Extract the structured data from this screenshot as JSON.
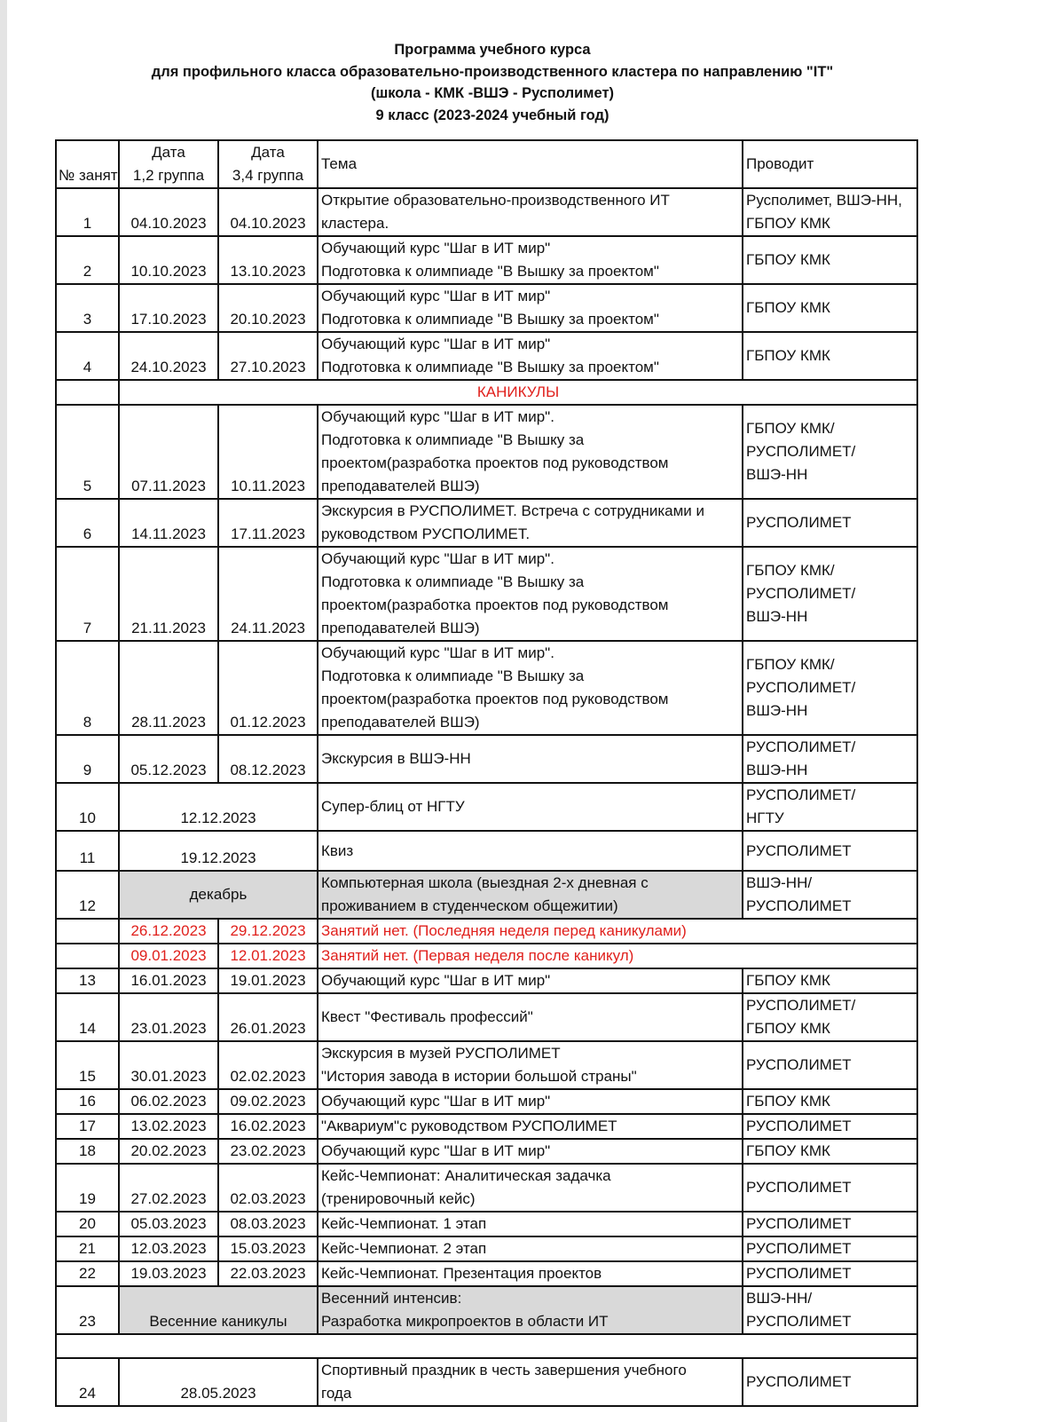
{
  "titles": {
    "line1": "Программа учебного курса",
    "line2": "для профильного класса образовательно-производственного кластера по направлению \"IT\"",
    "line3": "(школа - КМК -ВШЭ - Рusполимет)",
    "line4": "9 класс (2023-2024 учебный год)"
  },
  "header": {
    "num": "№ занят",
    "date1": "Дата\n1,2 группа",
    "date2": "Дата\n3,4 группа",
    "topic": "Тема",
    "lead": "Проводит"
  },
  "rows": [
    {
      "kind": "lesson",
      "h": 52,
      "num": "1",
      "d1": "04.10.2023",
      "d2": "04.10.2023",
      "topic": "Открытие образовательно-производственного ИТ\nкластера.",
      "lead": "Русполимет, ВШЭ-НН,\nГБПОУ КМК"
    },
    {
      "kind": "lesson",
      "h": 52,
      "num": "2",
      "d1": "10.10.2023",
      "d2": "13.10.2023",
      "topic": "Обучающий курс \"Шаг в ИТ мир\"\nПодготовка к олимпиаде \"В Вышку за проектом\"",
      "lead": "ГБПОУ КМК"
    },
    {
      "kind": "lesson",
      "h": 52,
      "num": "3",
      "d1": "17.10.2023",
      "d2": "20.10.2023",
      "topic": "Обучающий курс \"Шаг в ИТ мир\"\nПодготовка к олимпиаде \"В Вышку за проектом\"",
      "lead": "ГБПОУ КМК"
    },
    {
      "kind": "lesson",
      "h": 52,
      "num": "4",
      "d1": "24.10.2023",
      "d2": "27.10.2023",
      "topic": "Обучающий курс \"Шаг в ИТ мир\"\nПодготовка к олимпиаде \"В Вышку за проектом\"",
      "lead": "ГБПОУ КМК"
    },
    {
      "kind": "holiday",
      "h": 26,
      "topic": "КАНИКУЛЫ"
    },
    {
      "kind": "lesson",
      "h": 105,
      "num": "5",
      "d1": "07.11.2023",
      "d2": "10.11.2023",
      "topic": "Обучающий курс \"Шаг в ИТ мир\".\nПодготовка к олимпиаде \"В Вышку за\nпроектом(разработка проектов под руководством\nпреподавателей ВШЭ)",
      "lead": "ГБПОУ КМК/\nРУСПОЛИМЕТ/\nВШЭ-НН"
    },
    {
      "kind": "lesson",
      "h": 52,
      "num": "6",
      "d1": "14.11.2023",
      "d2": "17.11.2023",
      "topic": "Экскурсия в РУСПОЛИМЕТ. Встреча с сотрудниками и\nруководством РУСПОЛИМЕТ.",
      "lead": "РУСПОЛИМЕТ"
    },
    {
      "kind": "lesson",
      "h": 105,
      "num": "7",
      "d1": "21.11.2023",
      "d2": "24.11.2023",
      "topic": "Обучающий курс \"Шаг в ИТ мир\".\nПодготовка к олимпиаде \"В Вышку за\nпроектом(разработка проектов под руководством\nпреподавателей ВШЭ)",
      "lead": "ГБПОУ КМК/\nРУСПОЛИМЕТ/\nВШЭ-НН"
    },
    {
      "kind": "lesson",
      "h": 104,
      "num": "8",
      "d1": "28.11.2023",
      "d2": "01.12.2023",
      "topic": "Обучающий курс \"Шаг в ИТ мир\".\nПодготовка к олимпиаде \"В Вышку за\nпроектом(разработка проектов под руководством\nпреподавателей ВШЭ)",
      "lead": "ГБПОУ КМК/\nРУСПОЛИМЕТ/\nВШЭ-НН"
    },
    {
      "kind": "lesson",
      "h": 53,
      "num": "9",
      "d1": "05.12.2023",
      "d2": "08.12.2023",
      "topic": "Экскурсия в ВШЭ-НН",
      "lead": "РУСПОЛИМЕТ/\nВШЭ-НН"
    },
    {
      "kind": "merged",
      "h": 52,
      "num": "10",
      "date": "12.12.2023",
      "topic": "Супер-блиц от НГТУ",
      "lead": "РУСПОЛИМЕТ/\nНГТУ"
    },
    {
      "kind": "merged",
      "h": 45,
      "num": "11",
      "date": "19.12.2023",
      "topic": "Квиз",
      "lead": "РУСПОЛИМЕТ"
    },
    {
      "kind": "gray",
      "h": 52,
      "num": "12",
      "date": "декабрь",
      "topic": "Компьютерная школа  (выездная 2-х дневная с\nпроживанием в студенческом общежитии)",
      "lead": "ВШЭ-НН/\nРУСПОЛИМЕТ"
    },
    {
      "kind": "off",
      "h": 26,
      "d1": "26.12.2023",
      "d2": "29.12.2023",
      "topic": "Занятий нет. (Последняя неделя перед каникулами)"
    },
    {
      "kind": "off",
      "h": 26,
      "d1": "09.01.2023",
      "d2": "12.01.2023",
      "topic": "Занятий нет. (Первая неделя после каникул)"
    },
    {
      "kind": "lesson",
      "h": 26,
      "num": "13",
      "d1": "16.01.2023",
      "d2": "19.01.2023",
      "topic": "Обучающий курс \"Шаг в ИТ мир\"",
      "lead": "ГБПОУ КМК"
    },
    {
      "kind": "lesson",
      "h": 53,
      "num": "14",
      "d1": "23.01.2023",
      "d2": "26.01.2023",
      "topic": "Квест \"Фестиваль профессий\"",
      "lead": "РУСПОЛИМЕТ/\nГБПОУ КМК"
    },
    {
      "kind": "lesson",
      "h": 52,
      "num": "15",
      "d1": "30.01.2023",
      "d2": "02.02.2023",
      "topic": "Экскурсия в музей РУСПОЛИМЕТ\n\"История завода в истории большой страны\"",
      "lead": "РУСПОЛИМЕТ"
    },
    {
      "kind": "lesson",
      "h": 26,
      "num": "16",
      "d1": "06.02.2023",
      "d2": "09.02.2023",
      "topic": "Обучающий курс \"Шаг в ИТ мир\"",
      "lead": "ГБПОУ КМК"
    },
    {
      "kind": "lesson",
      "h": 26,
      "num": "17",
      "d1": "13.02.2023",
      "d2": "16.02.2023",
      "topic": "\"Аквариум\"с руководством РУСПОЛИМЕТ",
      "lead": "РУСПОЛИМЕТ"
    },
    {
      "kind": "lesson",
      "h": 26,
      "num": "18",
      "d1": "20.02.2023",
      "d2": "23.02.2023",
      "topic": "Обучающий курс \"Шаг в ИТ мир\"",
      "lead": "ГБПОУ КМК"
    },
    {
      "kind": "lesson",
      "h": 53,
      "num": "19",
      "d1": "27.02.2023",
      "d2": "02.03.2023",
      "topic": "Кейс-Чемпионат: Аналитическая задачка\n(тренировочный кейс)",
      "lead": "РУСПОЛИМЕТ"
    },
    {
      "kind": "lesson",
      "h": 26,
      "num": "20",
      "d1": "05.03.2023",
      "d2": "08.03.2023",
      "topic": "Кейс-Чемпионат. 1 этап",
      "lead": "РУСПОЛИМЕТ"
    },
    {
      "kind": "lesson",
      "h": 26,
      "num": "21",
      "d1": "12.03.2023",
      "d2": "15.03.2023",
      "topic": "Кейс-Чемпионат. 2 этап",
      "lead": "РУСПОЛИМЕТ"
    },
    {
      "kind": "lesson",
      "h": 26,
      "num": "22",
      "d1": "19.03.2023",
      "d2": "22.03.2023",
      "topic": "Кейс-Чемпионат. Презентация проектов",
      "lead": "РУСПОЛИМЕТ"
    },
    {
      "kind": "gray",
      "h": 52,
      "num": "23",
      "date": "Весенние каникулы",
      "topic": "Весенний интенсив:\nРазработка микропроектов в области ИТ",
      "lead": "ВШЭ-НН/\nРУСПОЛИМЕТ"
    },
    {
      "kind": "empty",
      "h": 27
    },
    {
      "kind": "merged",
      "h": 52,
      "num": "24",
      "date": "28.05.2023",
      "topic": "Спортивный праздник в честь завершения учебного\nгода",
      "lead": "РУСПОЛИМЕТ"
    }
  ],
  "colors": {
    "red": "#e0201c",
    "gray": "#d9d9d9"
  }
}
